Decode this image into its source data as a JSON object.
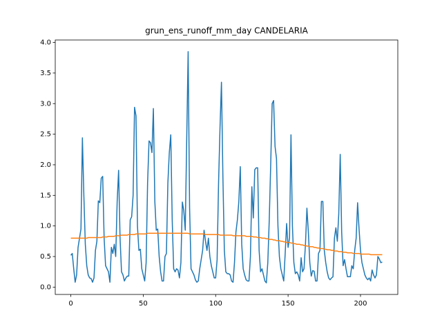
{
  "chart_data": {
    "type": "line",
    "title": "grun_ens_runoff_mm_day CANDELARIA",
    "x": [
      0,
      1,
      2,
      3,
      4,
      5,
      6,
      7,
      8,
      9,
      10,
      11,
      12,
      13,
      14,
      15,
      16,
      17,
      18,
      19,
      20,
      21,
      22,
      23,
      24,
      25,
      26,
      27,
      28,
      29,
      30,
      31,
      32,
      33,
      34,
      35,
      36,
      37,
      38,
      39,
      40,
      41,
      42,
      43,
      44,
      45,
      46,
      47,
      48,
      49,
      50,
      51,
      52,
      53,
      54,
      55,
      56,
      57,
      58,
      59,
      60,
      61,
      62,
      63,
      64,
      65,
      66,
      67,
      68,
      69,
      70,
      71,
      72,
      73,
      74,
      75,
      76,
      77,
      78,
      79,
      80,
      81,
      82,
      83,
      84,
      85,
      86,
      87,
      88,
      89,
      90,
      91,
      92,
      93,
      94,
      95,
      96,
      97,
      98,
      99,
      100,
      101,
      102,
      103,
      104,
      105,
      106,
      107,
      108,
      109,
      110,
      111,
      112,
      113,
      114,
      115,
      116,
      117,
      118,
      119,
      120,
      121,
      122,
      123,
      124,
      125,
      126,
      127,
      128,
      129,
      130,
      131,
      132,
      133,
      134,
      135,
      136,
      137,
      138,
      139,
      140,
      141,
      142,
      143,
      144,
      145,
      146,
      147,
      148,
      149,
      150,
      151,
      152,
      153,
      154,
      155,
      156,
      157,
      158,
      159,
      160,
      161,
      162,
      163,
      164,
      165,
      166,
      167,
      168,
      169,
      170,
      171,
      172,
      173,
      174,
      175,
      176,
      177,
      178,
      179,
      180,
      181,
      182,
      183,
      184,
      185,
      186,
      187,
      188,
      189,
      190,
      191,
      192,
      193,
      194,
      195,
      196,
      197,
      198,
      199,
      200,
      201,
      202,
      203,
      204,
      205,
      206,
      207,
      208,
      209,
      210,
      211,
      212,
      213,
      214,
      215
    ],
    "series": [
      {
        "color": "#1f77b4",
        "values": [
          0.52,
          0.55,
          0.3,
          0.08,
          0.2,
          0.65,
          0.8,
          0.95,
          2.44,
          1.5,
          0.7,
          0.35,
          0.2,
          0.15,
          0.14,
          0.08,
          0.15,
          0.6,
          0.75,
          1.41,
          1.38,
          1.78,
          1.81,
          0.8,
          0.35,
          0.3,
          0.25,
          0.08,
          0.65,
          0.55,
          0.7,
          0.5,
          1.4,
          1.91,
          0.8,
          0.25,
          0.2,
          0.1,
          0.15,
          0.18,
          0.18,
          1.1,
          1.15,
          1.5,
          2.94,
          2.8,
          1.0,
          0.6,
          0.62,
          0.3,
          0.2,
          0.1,
          0.4,
          1.7,
          2.39,
          2.36,
          2.2,
          2.92,
          1.4,
          0.93,
          0.95,
          0.5,
          0.25,
          0.1,
          0.1,
          0.5,
          0.55,
          1.7,
          2.2,
          2.49,
          1.1,
          0.3,
          0.25,
          0.3,
          0.28,
          0.15,
          0.4,
          1.39,
          1.25,
          0.93,
          2.4,
          3.85,
          1.3,
          0.3,
          0.25,
          0.2,
          0.12,
          0.08,
          0.1,
          0.3,
          0.45,
          0.6,
          0.93,
          0.75,
          0.6,
          0.8,
          0.5,
          0.35,
          0.25,
          0.15,
          0.15,
          0.45,
          1.7,
          2.6,
          3.35,
          1.8,
          0.6,
          0.25,
          0.22,
          0.22,
          0.2,
          0.1,
          0.08,
          0.4,
          0.9,
          1.1,
          1.4,
          1.97,
          0.7,
          0.3,
          0.2,
          0.12,
          0.1,
          0.1,
          0.5,
          1.64,
          1.13,
          1.92,
          1.95,
          1.95,
          0.6,
          0.25,
          0.3,
          0.2,
          0.1,
          0.07,
          0.4,
          1.1,
          2.0,
          3.0,
          3.05,
          2.3,
          2.1,
          1.0,
          0.5,
          0.3,
          0.2,
          0.1,
          0.55,
          1.04,
          0.65,
          0.8,
          2.49,
          1.0,
          0.4,
          0.22,
          0.25,
          0.2,
          0.1,
          0.48,
          0.25,
          0.3,
          0.7,
          1.29,
          0.9,
          0.4,
          0.18,
          0.27,
          0.26,
          0.1,
          0.1,
          0.55,
          0.6,
          1.4,
          1.4,
          0.6,
          0.4,
          0.25,
          0.15,
          0.12,
          0.15,
          0.17,
          0.8,
          0.97,
          0.75,
          1.2,
          2.17,
          0.9,
          0.35,
          0.45,
          0.3,
          0.17,
          0.17,
          0.17,
          0.35,
          0.3,
          0.6,
          0.8,
          1.38,
          0.95,
          0.6,
          0.4,
          0.3,
          0.2,
          0.15,
          0.12,
          0.15,
          0.1,
          0.28,
          0.2,
          0.15,
          0.2,
          0.5,
          0.46,
          0.4,
          0.41
        ]
      },
      {
        "color": "#ff7f0e",
        "values": [
          0.8,
          0.8,
          0.8,
          0.8,
          0.8,
          0.8,
          0.8,
          0.8,
          0.8,
          0.8,
          0.8,
          0.8,
          0.81,
          0.81,
          0.81,
          0.81,
          0.81,
          0.81,
          0.81,
          0.81,
          0.81,
          0.81,
          0.82,
          0.82,
          0.82,
          0.82,
          0.83,
          0.83,
          0.83,
          0.83,
          0.83,
          0.84,
          0.84,
          0.84,
          0.84,
          0.85,
          0.85,
          0.85,
          0.85,
          0.85,
          0.86,
          0.86,
          0.86,
          0.86,
          0.86,
          0.87,
          0.87,
          0.87,
          0.87,
          0.87,
          0.87,
          0.87,
          0.87,
          0.88,
          0.88,
          0.88,
          0.88,
          0.88,
          0.88,
          0.88,
          0.88,
          0.88,
          0.88,
          0.88,
          0.88,
          0.88,
          0.88,
          0.88,
          0.88,
          0.88,
          0.88,
          0.88,
          0.88,
          0.88,
          0.88,
          0.88,
          0.88,
          0.88,
          0.88,
          0.88,
          0.88,
          0.88,
          0.87,
          0.87,
          0.87,
          0.87,
          0.87,
          0.87,
          0.87,
          0.87,
          0.87,
          0.87,
          0.87,
          0.86,
          0.86,
          0.86,
          0.86,
          0.86,
          0.86,
          0.86,
          0.86,
          0.86,
          0.86,
          0.85,
          0.85,
          0.85,
          0.85,
          0.85,
          0.85,
          0.85,
          0.85,
          0.85,
          0.84,
          0.84,
          0.84,
          0.84,
          0.84,
          0.84,
          0.84,
          0.84,
          0.84,
          0.83,
          0.83,
          0.83,
          0.83,
          0.83,
          0.82,
          0.82,
          0.82,
          0.81,
          0.81,
          0.81,
          0.8,
          0.8,
          0.8,
          0.79,
          0.79,
          0.78,
          0.78,
          0.78,
          0.77,
          0.77,
          0.76,
          0.76,
          0.76,
          0.75,
          0.75,
          0.74,
          0.74,
          0.73,
          0.73,
          0.73,
          0.72,
          0.72,
          0.71,
          0.71,
          0.7,
          0.7,
          0.7,
          0.69,
          0.69,
          0.68,
          0.68,
          0.67,
          0.67,
          0.66,
          0.66,
          0.66,
          0.65,
          0.65,
          0.64,
          0.64,
          0.63,
          0.63,
          0.63,
          0.62,
          0.62,
          0.61,
          0.61,
          0.61,
          0.6,
          0.6,
          0.59,
          0.59,
          0.59,
          0.58,
          0.58,
          0.58,
          0.57,
          0.57,
          0.57,
          0.56,
          0.56,
          0.56,
          0.56,
          0.55,
          0.55,
          0.55,
          0.55,
          0.55,
          0.54,
          0.54,
          0.54,
          0.54,
          0.54,
          0.54,
          0.54,
          0.53,
          0.53,
          0.53,
          0.53,
          0.53,
          0.53,
          0.53,
          0.53,
          0.53
        ]
      }
    ],
    "xlim": [
      -10.75,
      225.75
    ],
    "xticks": [
      0,
      50,
      100,
      150,
      200
    ],
    "ylim": [
      -0.12,
      4.04
    ],
    "yticks": [
      {
        "value": 0,
        "label": "0.0"
      },
      0.5,
      {
        "value": 1,
        "label": "1.0"
      },
      1.5,
      {
        "value": 2,
        "label": "2.0"
      },
      2.5,
      {
        "value": 3,
        "label": "3.0"
      },
      3.5,
      {
        "value": 4,
        "label": "4.0"
      }
    ]
  }
}
